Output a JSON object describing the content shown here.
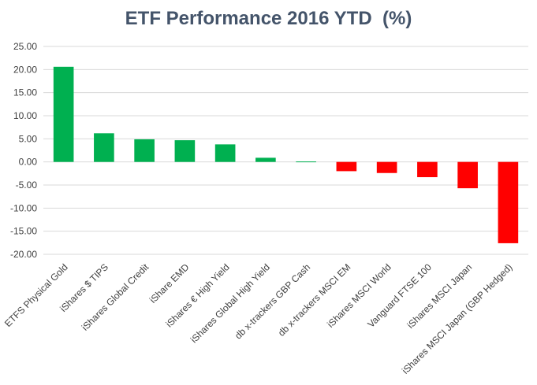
{
  "chart_data": {
    "type": "bar",
    "title": "ETF Performance 2016 YTD  (%)",
    "xlabel": "",
    "ylabel": "",
    "ylim": [
      -20,
      25
    ],
    "yticks": [
      "25.00",
      "20.00",
      "15.00",
      "10.00",
      "5.00",
      "0.00",
      "-5.00",
      "-10.00",
      "-15.00",
      "-20.00"
    ],
    "ytick_values": [
      25,
      20,
      15,
      10,
      5,
      0,
      -5,
      -10,
      -15,
      -20
    ],
    "grid": true,
    "legend": "none",
    "positive_color": "#00b050",
    "negative_color": "#ff0000",
    "grid_color": "#d9d9d9",
    "categories": [
      "ETFS Physical Gold",
      "iShares $ TIPS",
      "iShares Global Credit",
      "iShare EMD",
      "iShares € High Yield",
      "iShares Global High Yield",
      "db x-trackers GBP Cash",
      "db x-trackers MSCI EM",
      "iShares MSCI World",
      "Vanguard FTSE 100",
      "iShares MSCI Japan",
      "iShares MSCI Japan (GBP Hedged)"
    ],
    "values": [
      20.6,
      6.2,
      4.9,
      4.7,
      3.8,
      0.9,
      0.1,
      -2.0,
      -2.4,
      -3.3,
      -5.7,
      -17.6
    ]
  }
}
